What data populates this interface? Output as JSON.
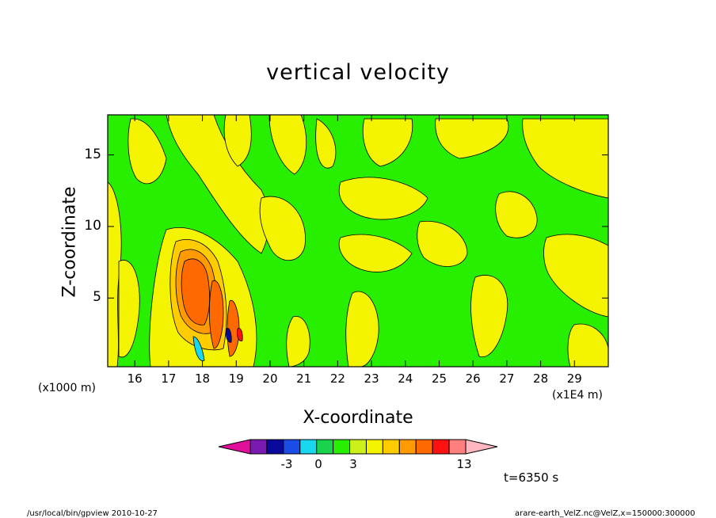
{
  "chart_data": {
    "type": "heatmap",
    "title": "vertical velocity",
    "xlabel": "X-coordinate",
    "ylabel": "Z-coordinate",
    "x_unit_left": "(x1000 m)",
    "x_unit_right": "(x1E4 m)",
    "x_ticks": [
      16,
      17,
      18,
      19,
      20,
      21,
      22,
      23,
      24,
      25,
      26,
      27,
      28,
      29
    ],
    "xlim": [
      15.2,
      30.0
    ],
    "y_ticks": [
      5,
      10,
      15
    ],
    "ylim": [
      0.2,
      17.8
    ],
    "colorbar": {
      "tick_labels": [
        "-3",
        "0",
        "3",
        "13"
      ],
      "tick_values": [
        -3,
        0,
        3,
        13
      ],
      "colors": [
        "#e0109a",
        "#7a1ab0",
        "#0a0a9a",
        "#1a4ce6",
        "#18d8f0",
        "#19d34d",
        "#28ee00",
        "#ccf01a",
        "#f4f400",
        "#ffcc00",
        "#ff9a00",
        "#ff6a00",
        "#ff1111",
        "#ff7f7f",
        "#ffb6c1"
      ]
    },
    "time_label": "t=6350 s",
    "colors": {
      "background": "#28ee00",
      "positive_weak": "#f4f400",
      "positive_mid": "#ff9a00",
      "positive_strong": "#ff6a00",
      "negative": "#18d8f0"
    }
  },
  "footer": {
    "left": "/usr/local/bin/gpview  2010-10-27",
    "right": "arare-earth_VelZ.nc@VelZ,x=150000:300000"
  }
}
